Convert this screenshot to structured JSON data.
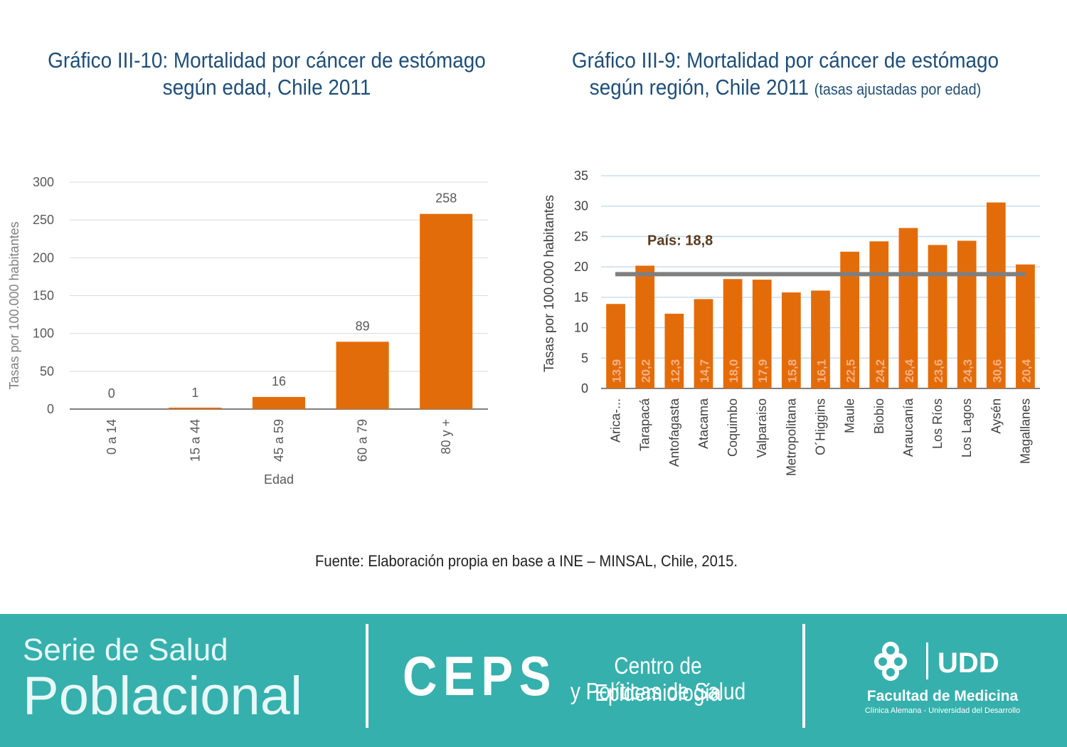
{
  "titles": {
    "left": "Gráfico III-10: Mortalidad por cáncer de estómago según edad, Chile 2011",
    "right_main": "Gráfico III-9: Mortalidad por cáncer de estómago según región, Chile 2011",
    "right_sub": "(tasas ajustadas por edad)"
  },
  "chart_data": [
    {
      "type": "bar",
      "title": "Gráfico III-10: Mortalidad por cáncer de estómago según edad, Chile 2011",
      "xlabel": "Edad",
      "ylabel": "Tasas por 100.000 habitantes",
      "categories": [
        "0 a 14",
        "15 a 44",
        "45 a 59",
        "60 a 79",
        "80 y +"
      ],
      "values": [
        0,
        1,
        16,
        89,
        258
      ],
      "data_labels": [
        "0",
        "1",
        "16",
        "89",
        "258"
      ],
      "ylim": [
        0,
        300
      ],
      "yticks": [
        0,
        50,
        100,
        150,
        200,
        250,
        300
      ],
      "grid": true,
      "color": "#e36c0a"
    },
    {
      "type": "bar",
      "title": "Gráfico III-9: Mortalidad por cáncer de estómago según región, Chile 2011 (tasas ajustadas por edad)",
      "xlabel": "",
      "ylabel": "Tasas por 100.000 habitantes",
      "categories": [
        "Arica-...",
        "Tarapacá",
        "Antofagasta",
        "Atacama",
        "Coquimbo",
        "Valparaiso",
        "Metropolitana",
        "O´Higgins",
        "Maule",
        "Biobio",
        "Araucanía",
        "Los Ríos",
        "Los Lagos",
        "Aysén",
        "Magallanes"
      ],
      "values": [
        13.9,
        20.2,
        12.3,
        14.7,
        18.0,
        17.9,
        15.8,
        16.1,
        22.5,
        24.2,
        26.4,
        23.6,
        24.3,
        30.6,
        20.4
      ],
      "data_labels": [
        "13,9",
        "20,2",
        "12,3",
        "14,7",
        "18,0",
        "17,9",
        "15,8",
        "16,1",
        "22,5",
        "24,2",
        "26,4",
        "23,6",
        "24,3",
        "30,6",
        "20,4"
      ],
      "ylim": [
        0,
        35
      ],
      "yticks": [
        0,
        5,
        10,
        15,
        20,
        25,
        30,
        35
      ],
      "grid": true,
      "color": "#e36c0a",
      "reference_line": {
        "label": "País: 18,8",
        "value": 18.8,
        "color": "#7f7f7f"
      }
    }
  ],
  "source": "Fuente: Elaboración propia en base a INE – MINSAL, Chile, 2015.",
  "footer": {
    "serie_line1": "Serie de Salud",
    "serie_line2": "Poblacional",
    "ceps": "CEPS",
    "ceps_line1": "Centro de Epidemiología",
    "ceps_line2": "y Políticas de Salud",
    "udd": "UDD",
    "facultad": "Facultad de Medicina",
    "facultad_sub": "Clínica Alemana - Universidad del Desarrollo",
    "color": "#35b0ad"
  }
}
